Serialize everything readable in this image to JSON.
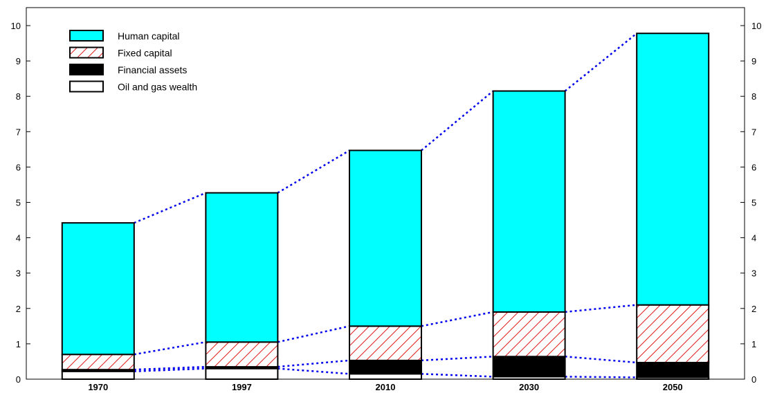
{
  "chart_data": {
    "type": "bar",
    "stacked": true,
    "categories": [
      "1970",
      "1997",
      "2010",
      "2030",
      "2050"
    ],
    "series": [
      {
        "name": "Oil and gas wealth",
        "values": [
          0.22,
          0.3,
          0.15,
          0.07,
          0.05
        ],
        "pattern": "solid",
        "color": "#ffffff"
      },
      {
        "name": "Financial assets",
        "values": [
          0.05,
          0.05,
          0.38,
          0.57,
          0.42
        ],
        "pattern": "solid",
        "color": "#000000"
      },
      {
        "name": "Fixed capital",
        "values": [
          0.43,
          0.7,
          0.97,
          1.26,
          1.63
        ],
        "pattern": "hatch",
        "color": "#e02020"
      },
      {
        "name": "Human capital",
        "values": [
          3.72,
          4.22,
          4.97,
          6.25,
          7.68
        ],
        "pattern": "solid",
        "color": "#00ffff"
      }
    ],
    "ylim": [
      0,
      10
    ],
    "yticks": [
      "0",
      "1",
      "2",
      "3",
      "4",
      "5",
      "6",
      "7",
      "8",
      "9",
      "10"
    ],
    "right_axis": true,
    "connector_lines": {
      "style": "dotted",
      "color": "#0000ee"
    },
    "legend": {
      "position": "top-left",
      "order": [
        "Human capital",
        "Fixed capital",
        "Financial assets",
        "Oil and gas wealth"
      ]
    },
    "title": "",
    "xlabel": "",
    "ylabel": "",
    "grid": false
  }
}
